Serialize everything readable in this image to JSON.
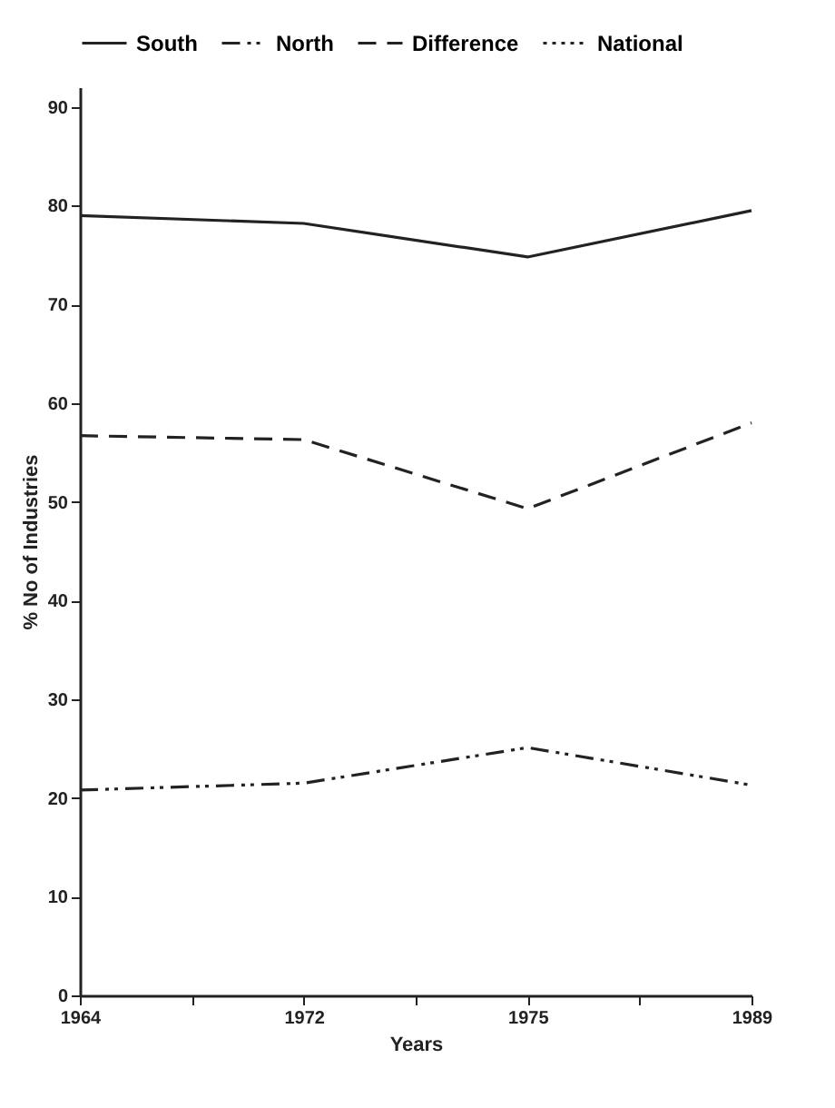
{
  "chart_data": {
    "type": "line",
    "xlabel": "Years",
    "ylabel": "% No of Industries",
    "categories": [
      "1964",
      null,
      "1972",
      null,
      "1975",
      null,
      "1989"
    ],
    "series": [
      {
        "name": "South",
        "color": "#222222",
        "line_style": "solid",
        "values": [
          79.0,
          null,
          78.2,
          null,
          74.8,
          null,
          79.5
        ]
      },
      {
        "name": "North",
        "color": "#222222",
        "line_style": "dashdot",
        "values": [
          20.8,
          null,
          21.5,
          null,
          25.1,
          null,
          21.3
        ]
      },
      {
        "name": "Difference",
        "color": "#222222",
        "line_style": "dashed",
        "values": [
          56.7,
          null,
          56.3,
          null,
          49.3,
          null,
          58.0
        ]
      },
      {
        "name": "National",
        "color": "#222222",
        "line_style": "dotted",
        "values": [
          null,
          null,
          null,
          null,
          null,
          null,
          null
        ]
      }
    ],
    "ylim": [
      0,
      92
    ],
    "yticks": [
      0,
      10,
      20,
      30,
      40,
      50,
      60,
      70,
      80,
      90
    ],
    "legend": "top",
    "marker": "none"
  }
}
